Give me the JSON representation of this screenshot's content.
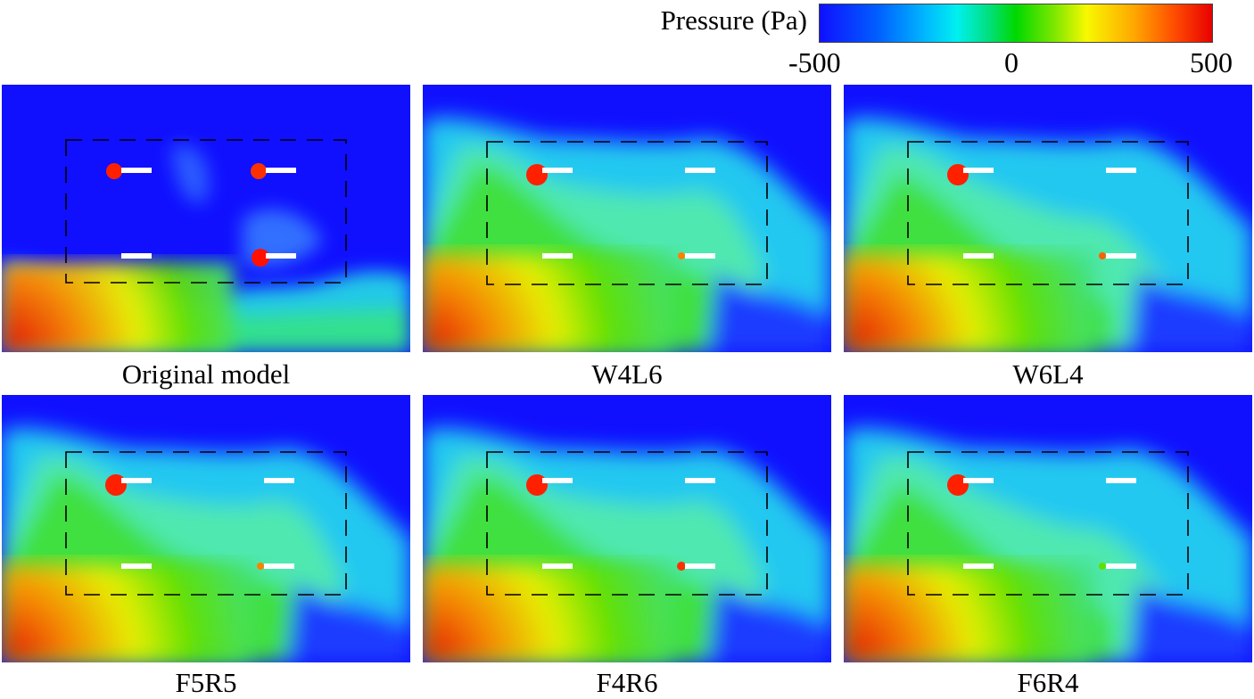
{
  "colorbar": {
    "title": "Pressure (Pa)",
    "ticks": [
      "-500",
      "0",
      "500"
    ],
    "range": [
      -500,
      500
    ]
  },
  "panels": [
    {
      "caption": "Original model",
      "variant": "original"
    },
    {
      "caption": "W4L6",
      "variant": "modified"
    },
    {
      "caption": "W6L4",
      "variant": "modified"
    },
    {
      "caption": "F5R5",
      "variant": "modified"
    },
    {
      "caption": "F4R6",
      "variant": "modified"
    },
    {
      "caption": "F6R4",
      "variant": "modified"
    }
  ]
}
